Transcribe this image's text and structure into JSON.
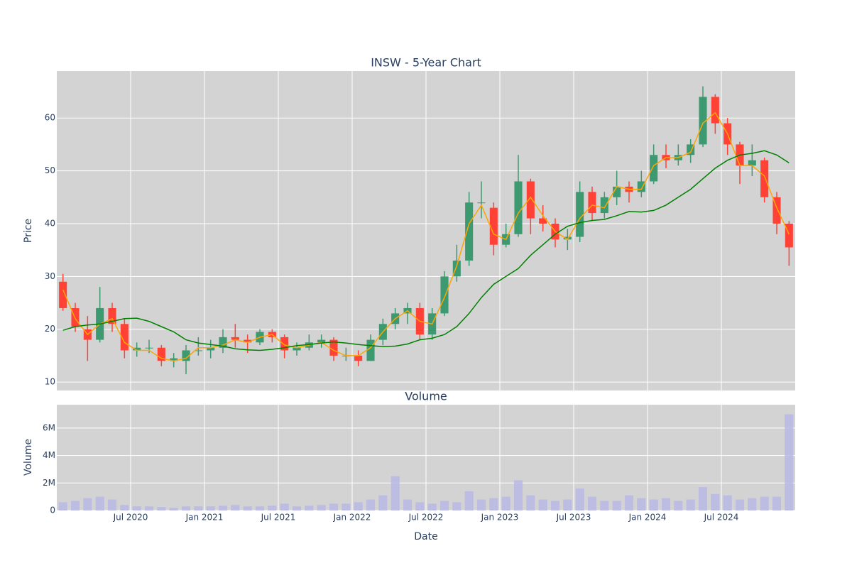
{
  "chart_data": [
    {
      "type": "candlestick",
      "title": "INSW - 5-Year Chart",
      "ylabel": "Price",
      "x": [
        "2020-01",
        "2020-02",
        "2020-03",
        "2020-04",
        "2020-05",
        "2020-06",
        "2020-07",
        "2020-08",
        "2020-09",
        "2020-10",
        "2020-11",
        "2020-12",
        "2021-01",
        "2021-02",
        "2021-03",
        "2021-04",
        "2021-05",
        "2021-06",
        "2021-07",
        "2021-08",
        "2021-09",
        "2021-10",
        "2021-11",
        "2021-12",
        "2022-01",
        "2022-02",
        "2022-03",
        "2022-04",
        "2022-05",
        "2022-06",
        "2022-07",
        "2022-08",
        "2022-09",
        "2022-10",
        "2022-11",
        "2022-12",
        "2023-01",
        "2023-02",
        "2023-03",
        "2023-04",
        "2023-05",
        "2023-06",
        "2023-07",
        "2023-08",
        "2023-09",
        "2023-10",
        "2023-11",
        "2023-12",
        "2024-01",
        "2024-02",
        "2024-03",
        "2024-04",
        "2024-05",
        "2024-06",
        "2024-07",
        "2024-08",
        "2024-09",
        "2024-10",
        "2024-11",
        "2024-12"
      ],
      "open": [
        29,
        24,
        20,
        18,
        24,
        21,
        16,
        16.5,
        16.5,
        14,
        14,
        16,
        16,
        16.5,
        18.5,
        18,
        17.5,
        19.5,
        18.5,
        16,
        16.5,
        17.5,
        18,
        15,
        15,
        14,
        18,
        21,
        23,
        24,
        19,
        23,
        30,
        33,
        44,
        43,
        36,
        38,
        48,
        41,
        40,
        37,
        37.5,
        46,
        42,
        45,
        47,
        46,
        48,
        53,
        52,
        53,
        55,
        64,
        59,
        55,
        51,
        52,
        45,
        40
      ],
      "high": [
        30.5,
        25,
        22.5,
        28,
        25,
        22,
        17.5,
        18,
        17,
        15.5,
        17,
        18.5,
        18,
        20,
        21,
        19,
        20,
        20,
        19,
        17.5,
        19,
        19,
        18.5,
        16.5,
        16,
        19,
        22,
        24,
        25,
        25,
        24,
        31,
        36,
        46,
        48,
        44,
        40,
        53,
        48.5,
        43.5,
        41,
        39,
        48,
        47,
        46,
        50,
        48,
        50,
        55,
        55,
        55,
        56,
        66,
        64.5,
        60,
        55.5,
        55,
        52.5,
        46,
        40.5
      ],
      "low": [
        23.5,
        19.5,
        14,
        17.5,
        19.5,
        14.5,
        14.8,
        15.5,
        13,
        12.8,
        11.5,
        15,
        14.5,
        15.5,
        16.5,
        15.5,
        17,
        17.5,
        14.5,
        15,
        16,
        16.5,
        14,
        14,
        13,
        14,
        17,
        20,
        21,
        18,
        18,
        22.5,
        29,
        32,
        41,
        34,
        35.5,
        37.5,
        38,
        38.5,
        35.5,
        35,
        36.5,
        40.5,
        41,
        43.5,
        44,
        45,
        47.5,
        50.5,
        51,
        51.5,
        54.5,
        57,
        53,
        47.5,
        49,
        44,
        38,
        32
      ],
      "close": [
        24,
        20.5,
        18,
        24,
        21,
        16,
        16.5,
        16.5,
        14,
        14.5,
        16,
        16,
        16.5,
        18.5,
        18,
        17.5,
        19.5,
        18.5,
        16,
        16.5,
        17.5,
        18,
        15,
        15,
        14,
        18,
        21,
        23,
        24,
        19,
        23,
        30,
        33,
        44,
        44,
        36,
        38,
        48,
        41,
        40,
        37,
        37.5,
        46,
        42,
        45,
        47,
        46,
        48,
        53,
        52,
        53,
        55,
        64,
        59,
        55,
        51,
        52,
        45,
        40,
        35.5
      ],
      "increasing_color": "#3d9970",
      "decreasing_color": "#ff4136",
      "series": [
        {
          "color": "#ffa500",
          "values": [
            27.5,
            22,
            19,
            21,
            22,
            17.5,
            16,
            16,
            14.5,
            14,
            14.5,
            16.5,
            16.5,
            17,
            18,
            17.5,
            18.5,
            19,
            17,
            16.5,
            17,
            17.5,
            16,
            15,
            15,
            16.5,
            19.5,
            22,
            23.5,
            21.5,
            21,
            26,
            32,
            40,
            43.5,
            38,
            37,
            42,
            45,
            41.5,
            38.5,
            37,
            41,
            43.5,
            43,
            47,
            46.5,
            46.5,
            51,
            52.5,
            52.5,
            53.5,
            59,
            61,
            57,
            51,
            51,
            49,
            43,
            38
          ]
        },
        {
          "color": "#008000",
          "values": [
            19.8,
            20.5,
            20.8,
            21,
            21.5,
            22,
            22.1,
            21.5,
            20.5,
            19.5,
            18,
            17.4,
            17.1,
            16.8,
            16.3,
            16.1,
            16,
            16.2,
            16.5,
            16.9,
            17.1,
            17.4,
            17.6,
            17.4,
            17.1,
            16.9,
            16.7,
            16.8,
            17.2,
            18,
            18.3,
            19,
            20.5,
            23,
            26,
            28.5,
            30,
            31.5,
            34,
            36,
            38,
            39.5,
            40.2,
            40.6,
            40.8,
            41.5,
            42.3,
            42.2,
            42.5,
            43.5,
            45,
            46.5,
            48.5,
            50.5,
            52,
            53,
            53.3,
            53.8,
            53,
            51.5
          ]
        }
      ],
      "ylim": [
        8.4,
        68.9
      ],
      "yticks": [
        10,
        20,
        30,
        40,
        50,
        60
      ],
      "grid": true
    },
    {
      "type": "bar",
      "title": "Volume",
      "ylabel": "Volume",
      "xlabel": "Date",
      "color": "#b8b8e6",
      "values": [
        600000,
        700000,
        900000,
        1000000,
        800000,
        400000,
        300000,
        300000,
        250000,
        200000,
        300000,
        300000,
        300000,
        350000,
        400000,
        300000,
        300000,
        350000,
        500000,
        300000,
        350000,
        400000,
        500000,
        500000,
        600000,
        800000,
        1100000,
        2500000,
        800000,
        600000,
        500000,
        700000,
        600000,
        1400000,
        800000,
        900000,
        1000000,
        2200000,
        1100000,
        800000,
        700000,
        800000,
        1600000,
        1000000,
        700000,
        700000,
        1100000,
        900000,
        800000,
        900000,
        700000,
        800000,
        1700000,
        1200000,
        1100000,
        800000,
        900000,
        1000000,
        1000000,
        7000000
      ],
      "ylim": [
        0,
        7700000
      ],
      "yticks": [
        0,
        {
          "value": 2000000,
          "label": "2M"
        },
        {
          "value": 4000000,
          "label": "4M"
        },
        {
          "value": 6000000,
          "label": "6M"
        }
      ],
      "xticks": [
        {
          "value": "2020-07",
          "label": "Jul 2020"
        },
        {
          "value": "2021-01",
          "label": "Jan 2021"
        },
        {
          "value": "2021-07",
          "label": "Jul 2021"
        },
        {
          "value": "2022-01",
          "label": "Jan 2022"
        },
        {
          "value": "2022-07",
          "label": "Jul 2022"
        },
        {
          "value": "2023-01",
          "label": "Jan 2023"
        },
        {
          "value": "2023-07",
          "label": "Jul 2023"
        },
        {
          "value": "2024-01",
          "label": "Jan 2024"
        },
        {
          "value": "2024-07",
          "label": "Jul 2024"
        }
      ],
      "grid": true
    }
  ]
}
